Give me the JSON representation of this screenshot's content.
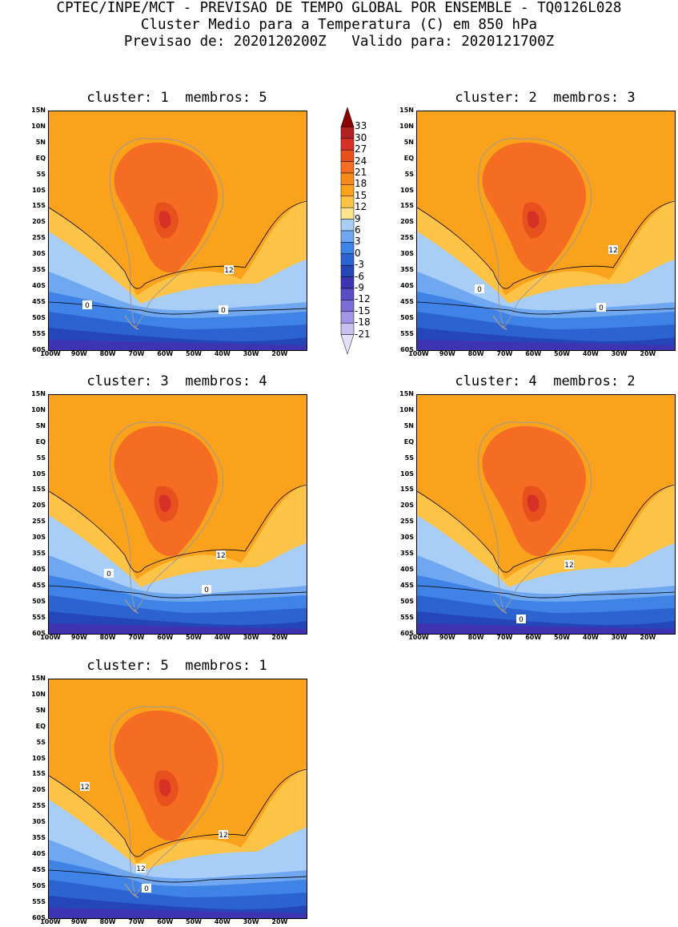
{
  "header": {
    "line1": "CPTEC/INPE/MCT - PREVISAO DE TEMPO GLOBAL POR ENSEMBLE - TQ0126L028",
    "line2": "Cluster Medio para a Temperatura (C) em 850 hPa",
    "line3": "Previsao de: 2020120200Z   Valido para: 2020121700Z"
  },
  "panels": [
    {
      "title": "cluster: 1  membros: 5"
    },
    {
      "title": "cluster: 2  membros: 3"
    },
    {
      "title": "cluster: 3  membros: 4"
    },
    {
      "title": "cluster: 4  membros: 2"
    },
    {
      "title": "cluster: 5  membros: 1"
    }
  ],
  "lat_labels": [
    "15N",
    "10N",
    "5N",
    "EQ",
    "5S",
    "10S",
    "15S",
    "20S",
    "25S",
    "30S",
    "35S",
    "40S",
    "45S",
    "50S",
    "55S",
    "60S"
  ],
  "lon_labels": [
    "100W",
    "90W",
    "80W",
    "70W",
    "60W",
    "50W",
    "40W",
    "30W",
    "20W"
  ],
  "contour_labels": {
    "warm": "12",
    "cold": "0"
  },
  "colorbar": {
    "levels": [
      "33",
      "30",
      "27",
      "24",
      "21",
      "18",
      "15",
      "12",
      "9",
      "6",
      "3",
      "0",
      "-3",
      "-6",
      "-9",
      "-12",
      "-15",
      "-18",
      "-21"
    ],
    "colors": [
      "#8b0000",
      "#b22222",
      "#d73027",
      "#e8501e",
      "#f46d22",
      "#f78a1a",
      "#fba21c",
      "#fdc347",
      "#fde58f",
      "#a8cdf7",
      "#6fa8f0",
      "#3f83e6",
      "#2c63d0",
      "#2446b8",
      "#3e33b0",
      "#5a4cc4",
      "#7a6ed6",
      "#a296e6",
      "#c9c0f2",
      "#e4e0fa"
    ]
  }
}
